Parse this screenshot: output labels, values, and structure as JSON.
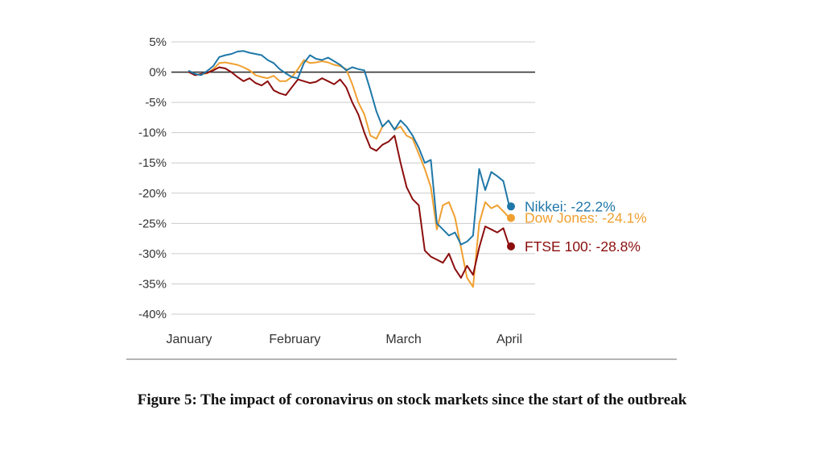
{
  "caption": "Figure 5: The impact of coronavirus on stock markets since the start of the outbreak",
  "chart_data": {
    "type": "line",
    "title": "",
    "xlabel": "",
    "ylabel": "",
    "x_tick_labels": [
      "January",
      "February",
      "March",
      "April"
    ],
    "y_ticks": [
      5,
      0,
      -5,
      -10,
      -15,
      -20,
      -25,
      -30,
      -35,
      -40
    ],
    "y_tick_labels": [
      "5%",
      "0%",
      "-5%",
      "-10%",
      "-15%",
      "-20%",
      "-25%",
      "-30%",
      "-35%",
      "-40%"
    ],
    "ylim": [
      -40,
      5
    ],
    "x_unit": "trading day index (0 = start of January, 53 = start of April)",
    "x_tick_positions": [
      0,
      17.5,
      35.5,
      53
    ],
    "grid": true,
    "colors": {
      "Nikkei": "#1f77a8",
      "Dow Jones": "#f0a030",
      "FTSE 100": "#8b0d0d",
      "zero_line": "#333333",
      "grid": "#cccccc",
      "baseline": "#888888"
    },
    "series": [
      {
        "name": "Nikkei",
        "end_label": "Nikkei: -22.2%",
        "x": [
          0,
          1,
          2,
          3,
          4,
          5,
          6,
          7,
          8,
          9,
          10,
          11,
          12,
          13,
          14,
          15,
          16,
          17,
          18,
          19,
          20,
          21,
          22,
          23,
          24,
          25,
          26,
          27,
          28,
          29,
          30,
          31,
          32,
          33,
          34,
          35,
          36,
          37,
          38,
          39,
          40,
          41,
          42,
          43,
          44,
          45,
          46,
          47,
          48,
          49,
          50,
          51,
          52,
          53
        ],
        "y": [
          0.2,
          -0.3,
          -0.5,
          0.2,
          1.0,
          2.5,
          2.8,
          3.0,
          3.4,
          3.5,
          3.2,
          3.0,
          2.8,
          2.0,
          1.5,
          0.5,
          -0.2,
          -0.8,
          -1.0,
          1.5,
          2.8,
          2.2,
          2.0,
          2.4,
          1.8,
          1.2,
          0.3,
          0.8,
          0.5,
          0.3,
          -3.0,
          -6.5,
          -9.0,
          -8.0,
          -9.5,
          -8.0,
          -9.0,
          -10.5,
          -12.5,
          -15.0,
          -14.5,
          -25.0,
          -26.0,
          -27.0,
          -26.5,
          -28.5,
          -28.0,
          -27.0,
          -16.0,
          -19.5,
          -16.5,
          -17.2,
          -18.0,
          -22.2
        ]
      },
      {
        "name": "Dow Jones",
        "end_label": "Dow Jones: -24.1%",
        "x": [
          0,
          1,
          2,
          3,
          4,
          5,
          6,
          7,
          8,
          9,
          10,
          11,
          12,
          13,
          14,
          15,
          16,
          17,
          18,
          19,
          20,
          21,
          22,
          23,
          24,
          25,
          26,
          27,
          28,
          29,
          30,
          31,
          32,
          33,
          34,
          35,
          36,
          37,
          38,
          39,
          40,
          41,
          42,
          43,
          44,
          45,
          46,
          47,
          48,
          49,
          50,
          51,
          52,
          53
        ],
        "y": [
          0.0,
          -0.5,
          -0.3,
          -0.2,
          0.5,
          1.5,
          1.6,
          1.4,
          1.2,
          0.8,
          0.3,
          -0.5,
          -0.8,
          -1.0,
          -0.6,
          -1.5,
          -1.5,
          -0.8,
          0.5,
          2.0,
          1.5,
          1.6,
          1.8,
          1.6,
          1.2,
          1.0,
          0.5,
          -2.0,
          -5.0,
          -7.0,
          -10.5,
          -11.0,
          -9.0,
          -8.0,
          -9.5,
          -9.0,
          -10.5,
          -11.0,
          -13.5,
          -16.0,
          -19.0,
          -26.0,
          -22.0,
          -21.5,
          -24.0,
          -29.0,
          -34.0,
          -35.5,
          -25.0,
          -21.5,
          -22.5,
          -22.0,
          -23.0,
          -24.1
        ]
      },
      {
        "name": "FTSE 100",
        "end_label": "FTSE 100: -28.8%",
        "x": [
          0,
          1,
          2,
          3,
          4,
          5,
          6,
          7,
          8,
          9,
          10,
          11,
          12,
          13,
          14,
          15,
          16,
          17,
          18,
          19,
          20,
          21,
          22,
          23,
          24,
          25,
          26,
          27,
          28,
          29,
          30,
          31,
          32,
          33,
          34,
          35,
          36,
          37,
          38,
          39,
          40,
          41,
          42,
          43,
          44,
          45,
          46,
          47,
          48,
          49,
          50,
          51,
          52,
          53
        ],
        "y": [
          0.0,
          -0.5,
          -0.3,
          -0.1,
          0.3,
          0.8,
          0.6,
          0.0,
          -0.8,
          -1.5,
          -1.0,
          -1.8,
          -2.2,
          -1.5,
          -3.0,
          -3.5,
          -3.8,
          -2.5,
          -1.2,
          -1.5,
          -1.8,
          -1.6,
          -1.0,
          -1.5,
          -2.0,
          -1.2,
          -2.5,
          -5.0,
          -7.0,
          -10.0,
          -12.5,
          -13.0,
          -12.0,
          -11.5,
          -10.5,
          -15.0,
          -19.0,
          -21.0,
          -22.0,
          -29.5,
          -30.5,
          -31.0,
          -31.5,
          -30.0,
          -32.5,
          -34.0,
          -32.0,
          -33.5,
          -29.0,
          -25.5,
          -26.0,
          -26.5,
          -25.8,
          -28.8
        ]
      }
    ]
  }
}
